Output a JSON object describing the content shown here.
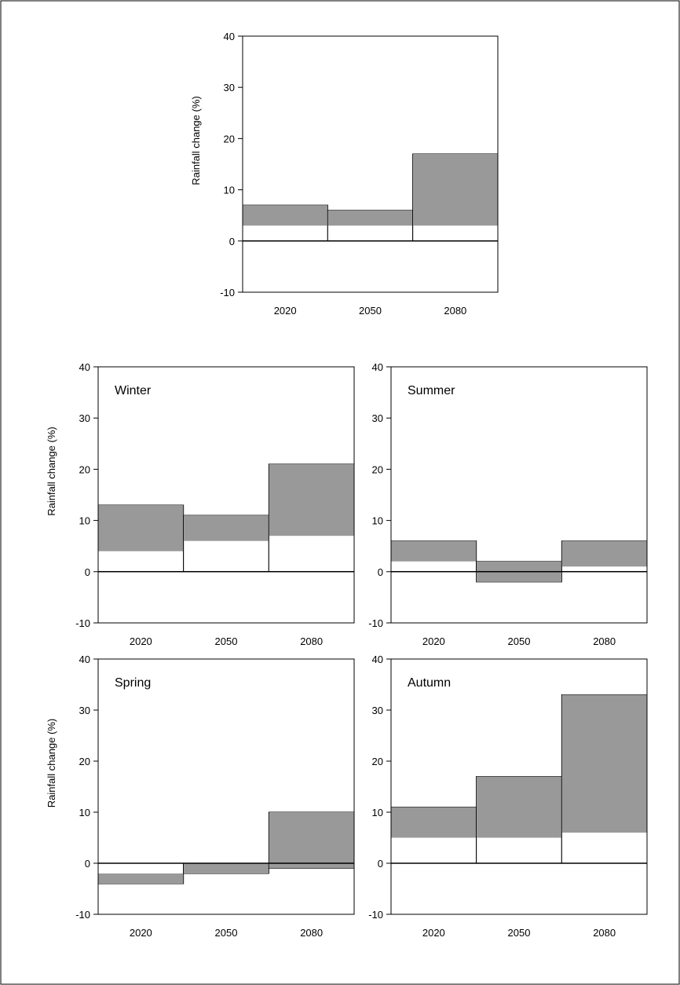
{
  "colors": {
    "range_fill": "#999999",
    "axis": "#000000",
    "background": "#ffffff"
  },
  "chart_data": [
    {
      "type": "bar",
      "panel_label": "",
      "ylabel": "Rainfall change (%)",
      "categories": [
        "2020",
        "2050",
        "2080"
      ],
      "ranges": [
        [
          3,
          7
        ],
        [
          3,
          6
        ],
        [
          3,
          17
        ]
      ],
      "ylim": [
        -10,
        40
      ],
      "yticks": [
        "-10",
        "0",
        "10",
        "20",
        "30",
        "40"
      ],
      "grid": false
    },
    {
      "type": "bar",
      "panel_label": "Winter",
      "ylabel": "Rainfall change (%)",
      "categories": [
        "2020",
        "2050",
        "2080"
      ],
      "ranges": [
        [
          4,
          13
        ],
        [
          6,
          11
        ],
        [
          7,
          21
        ]
      ],
      "ylim": [
        -10,
        40
      ],
      "yticks": [
        "-10",
        "0",
        "10",
        "20",
        "30",
        "40"
      ],
      "grid": false
    },
    {
      "type": "bar",
      "panel_label": "Summer",
      "ylabel": "",
      "categories": [
        "2020",
        "2050",
        "2080"
      ],
      "ranges": [
        [
          2,
          6
        ],
        [
          -2,
          2
        ],
        [
          1,
          6
        ]
      ],
      "ylim": [
        -10,
        40
      ],
      "yticks": [
        "-10",
        "0",
        "10",
        "20",
        "30",
        "40"
      ],
      "grid": false
    },
    {
      "type": "bar",
      "panel_label": "Spring",
      "ylabel": "Rainfall change (%)",
      "categories": [
        "2020",
        "2050",
        "2080"
      ],
      "ranges": [
        [
          -4,
          -2
        ],
        [
          -2,
          0
        ],
        [
          -1,
          10
        ]
      ],
      "ylim": [
        -10,
        40
      ],
      "yticks": [
        "-10",
        "0",
        "10",
        "20",
        "30",
        "40"
      ],
      "grid": false
    },
    {
      "type": "bar",
      "panel_label": "Autumn",
      "ylabel": "",
      "categories": [
        "2020",
        "2050",
        "2080"
      ],
      "ranges": [
        [
          5,
          11
        ],
        [
          5,
          17
        ],
        [
          6,
          33
        ]
      ],
      "ylim": [
        -10,
        40
      ],
      "yticks": [
        "-10",
        "0",
        "10",
        "20",
        "30",
        "40"
      ],
      "grid": false
    }
  ]
}
